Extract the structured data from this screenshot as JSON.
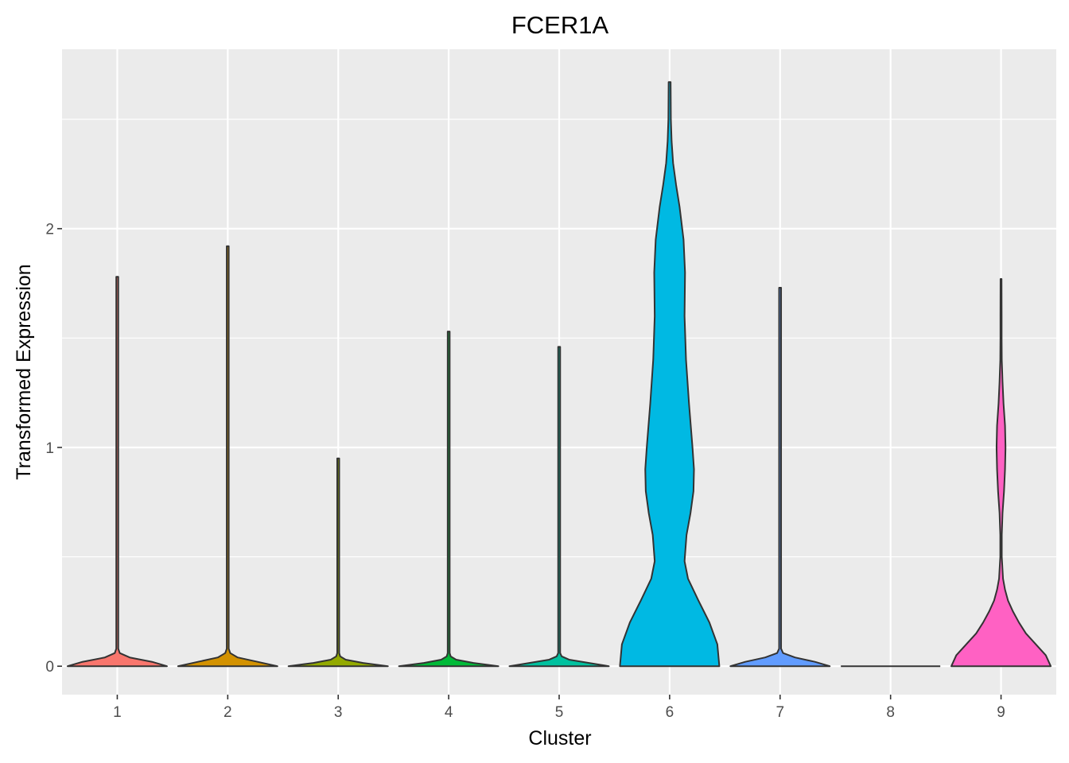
{
  "chart_data": {
    "type": "violin",
    "title": "FCER1A",
    "xlabel": "Cluster",
    "ylabel": "Transformed Expression",
    "categories": [
      "1",
      "2",
      "3",
      "4",
      "5",
      "6",
      "7",
      "8",
      "9"
    ],
    "y_ticks": [
      "0",
      "1",
      "2"
    ],
    "ylim": [
      -0.13,
      2.82
    ],
    "grid": true,
    "legend": "none",
    "series": [
      {
        "category": "1",
        "color": "#F8766D",
        "max": 1.78,
        "profile": [
          [
            0,
            1.0
          ],
          [
            0.02,
            0.7
          ],
          [
            0.04,
            0.25
          ],
          [
            0.06,
            0.05
          ],
          [
            0.08,
            0.02
          ],
          [
            1.78,
            0.02
          ]
        ]
      },
      {
        "category": "2",
        "color": "#D39200",
        "max": 1.92,
        "profile": [
          [
            0,
            1.0
          ],
          [
            0.02,
            0.6
          ],
          [
            0.04,
            0.2
          ],
          [
            0.06,
            0.05
          ],
          [
            0.08,
            0.02
          ],
          [
            1.92,
            0.02
          ]
        ]
      },
      {
        "category": "3",
        "color": "#93AA00",
        "max": 0.95,
        "profile": [
          [
            0,
            1.0
          ],
          [
            0.015,
            0.5
          ],
          [
            0.03,
            0.15
          ],
          [
            0.045,
            0.04
          ],
          [
            0.06,
            0.02
          ],
          [
            0.95,
            0.02
          ]
        ]
      },
      {
        "category": "4",
        "color": "#00BA38",
        "max": 1.53,
        "profile": [
          [
            0,
            1.0
          ],
          [
            0.015,
            0.5
          ],
          [
            0.03,
            0.15
          ],
          [
            0.045,
            0.04
          ],
          [
            0.06,
            0.02
          ],
          [
            1.53,
            0.02
          ]
        ]
      },
      {
        "category": "5",
        "color": "#00C19F",
        "max": 1.46,
        "profile": [
          [
            0,
            1.0
          ],
          [
            0.015,
            0.6
          ],
          [
            0.03,
            0.2
          ],
          [
            0.045,
            0.05
          ],
          [
            0.06,
            0.02
          ],
          [
            1.46,
            0.02
          ]
        ]
      },
      {
        "category": "6",
        "color": "#00B9E3",
        "max": 2.67,
        "profile": [
          [
            0,
            1.0
          ],
          [
            0.1,
            0.96
          ],
          [
            0.2,
            0.8
          ],
          [
            0.3,
            0.58
          ],
          [
            0.4,
            0.37
          ],
          [
            0.48,
            0.3
          ],
          [
            0.6,
            0.34
          ],
          [
            0.7,
            0.42
          ],
          [
            0.8,
            0.48
          ],
          [
            0.9,
            0.49
          ],
          [
            1.0,
            0.46
          ],
          [
            1.2,
            0.39
          ],
          [
            1.4,
            0.33
          ],
          [
            1.6,
            0.3
          ],
          [
            1.8,
            0.31
          ],
          [
            1.95,
            0.28
          ],
          [
            2.1,
            0.2
          ],
          [
            2.2,
            0.13
          ],
          [
            2.3,
            0.07
          ],
          [
            2.4,
            0.04
          ],
          [
            2.5,
            0.025
          ],
          [
            2.67,
            0.02
          ]
        ]
      },
      {
        "category": "7",
        "color": "#619CFF",
        "max": 1.73,
        "profile": [
          [
            0,
            1.0
          ],
          [
            0.02,
            0.7
          ],
          [
            0.04,
            0.3
          ],
          [
            0.06,
            0.06
          ],
          [
            0.08,
            0.02
          ],
          [
            1.73,
            0.02
          ]
        ]
      },
      {
        "category": "8",
        "color": "#DB72FB",
        "max": 0.0,
        "profile": [
          [
            0,
            1.0
          ]
        ]
      },
      {
        "category": "9",
        "color": "#FF61C3",
        "max": 1.77,
        "profile": [
          [
            0,
            1.0
          ],
          [
            0.05,
            0.9
          ],
          [
            0.1,
            0.7
          ],
          [
            0.15,
            0.5
          ],
          [
            0.2,
            0.36
          ],
          [
            0.25,
            0.24
          ],
          [
            0.3,
            0.14
          ],
          [
            0.35,
            0.08
          ],
          [
            0.4,
            0.04
          ],
          [
            0.5,
            0.015
          ],
          [
            0.6,
            0.015
          ],
          [
            0.7,
            0.03
          ],
          [
            0.8,
            0.06
          ],
          [
            0.9,
            0.08
          ],
          [
            1.0,
            0.09
          ],
          [
            1.1,
            0.08
          ],
          [
            1.2,
            0.05
          ],
          [
            1.3,
            0.03
          ],
          [
            1.4,
            0.015
          ],
          [
            1.5,
            0.012
          ],
          [
            1.6,
            0.012
          ],
          [
            1.77,
            0.01
          ]
        ]
      }
    ]
  }
}
